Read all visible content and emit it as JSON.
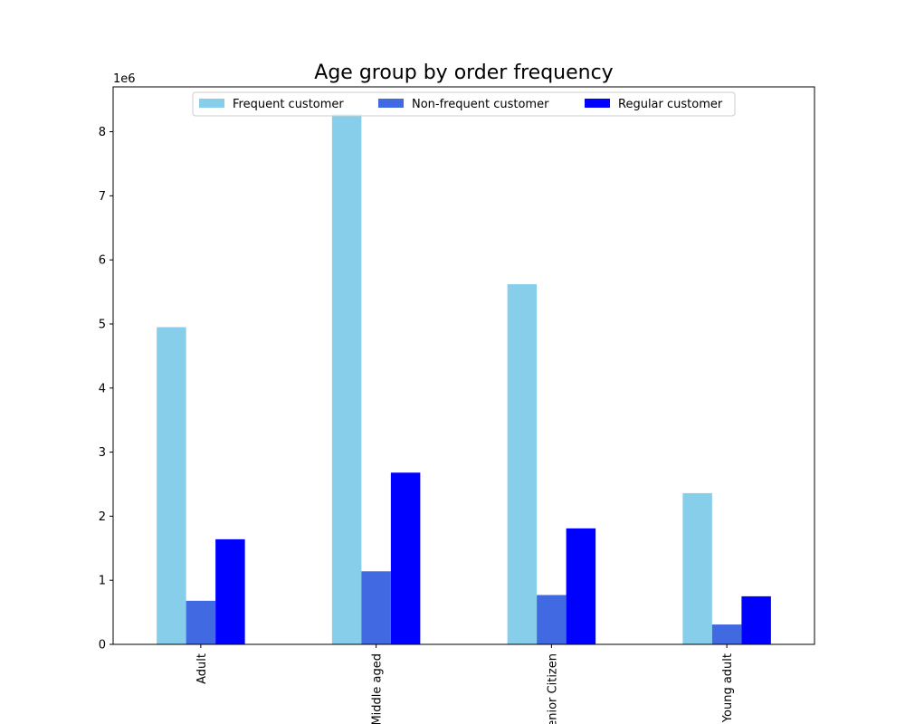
{
  "chart_data": {
    "type": "bar",
    "title": "Age group by order frequency",
    "xlabel": "",
    "ylabel": "",
    "categories": [
      "Adult",
      "Middle aged",
      "Senior Citizen",
      "Young adult"
    ],
    "series": [
      {
        "name": "Frequent customer",
        "color": "#87CEEB",
        "values": [
          4950000,
          8270000,
          5620000,
          2360000
        ]
      },
      {
        "name": "Non-frequent customer",
        "color": "#4169E1",
        "values": [
          680000,
          1140000,
          770000,
          310000
        ]
      },
      {
        "name": "Regular customer",
        "color": "#0000FF",
        "values": [
          1640000,
          2680000,
          1810000,
          750000
        ]
      }
    ],
    "ylim": [
      0,
      8700000
    ],
    "yticks": [
      0,
      1,
      2,
      3,
      4,
      5,
      6,
      7,
      8
    ],
    "y_scale_label": "1e6",
    "legend_position": "top-center",
    "grid": false
  }
}
